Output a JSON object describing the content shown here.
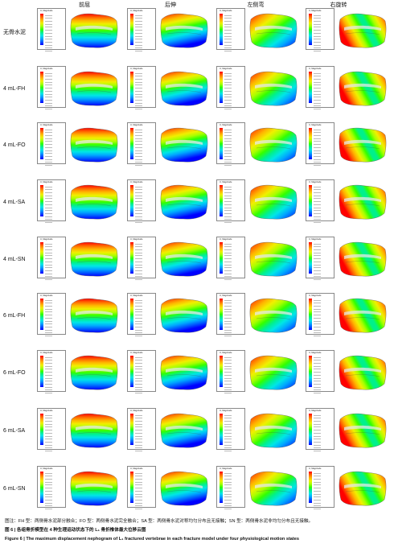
{
  "columns": [
    "前屈",
    "后伸",
    "左侧弯",
    "右旋转"
  ],
  "rows": [
    "无骨水泥",
    "4 mL-FH",
    "4 mL-FO",
    "4 mL-SA",
    "4 mL-SN",
    "6 mL-FH",
    "6 mL-FO",
    "6 mL-SA",
    "6 mL-SN"
  ],
  "legend_title": "U, Magnitude",
  "caption_cn": "图注：FH 型：两侧骨水泥部分融合；FO 型：两侧骨水泥完全融合；SA 型：两侧骨水泥对称均匀分布且无接触；SN 型：两侧骨水泥非均匀分布且无接触。",
  "title_cn": "图 6 | 各组骨折模型在 4 种生理运动状态下的 L₁ 骨折椎体最大位移云图",
  "title_en": "Figure 6 |  The maximum displacement nephogram of L₁ fractured vertebrae in each fracture model under four physiological motion states",
  "colors": {
    "contour": [
      "#0000ff",
      "#0057ff",
      "#00a8ff",
      "#00e6e6",
      "#00f08c",
      "#33ff00",
      "#a8ff00",
      "#f0f000",
      "#ffb400",
      "#ff6400",
      "#ff0000"
    ]
  }
}
